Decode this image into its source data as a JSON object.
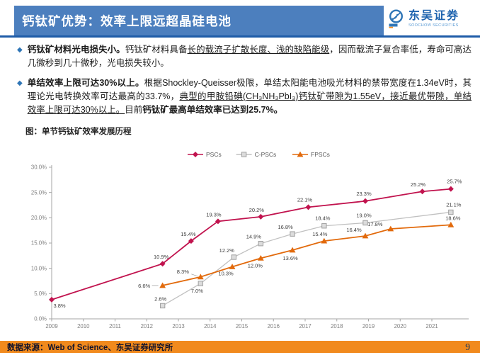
{
  "header": {
    "title": "钙钛矿优势：效率上限远超晶硅电池",
    "logo": {
      "name": "东吴证券",
      "sub": "SOOCHOW SECURITIES"
    }
  },
  "icons": {
    "bullet": "◆"
  },
  "bullets": [
    {
      "segments": [
        {
          "text": "钙钛矿材料光电损失小。",
          "bold": true
        },
        {
          "text": "钙钛矿材料具备"
        },
        {
          "text": "长的载流子扩散长度、浅的缺陷能级",
          "underline": true
        },
        {
          "text": "，因而载流子复合率低，寿命可高达几微秒到几十微秒，光电损失较小。"
        }
      ]
    },
    {
      "segments": [
        {
          "text": "单结效率上限可达30%以上。",
          "bold": true
        },
        {
          "text": "根据Shockley-Queisser极限，单结太阳能电池吸光材料的禁带宽度在1.34eV时，其理论光电转换效率可达最高的33.7%，"
        },
        {
          "text": "典型的甲胺铅碘(CH₃NH₃PbI₃)钙钛矿带隙为1.55eV，接近最优带隙，单结效率上限可达30%以上。",
          "underline": true
        },
        {
          "text": "目前"
        },
        {
          "text": "钙钛矿最高单结效率已达到25.7%。",
          "bold": true
        }
      ]
    }
  ],
  "figure_title": "图：单节钙钛矿效率发展历程",
  "chart_data": {
    "type": "line",
    "title": "单节钙钛矿效率发展历程",
    "xlabel": "",
    "ylabel": "",
    "grid": false,
    "legend_position": "top-center",
    "ylim": [
      0,
      30
    ],
    "y_ticks": [
      {
        "value": 0,
        "label": "0.0%"
      },
      {
        "value": 5,
        "label": "5.0%"
      },
      {
        "value": 10,
        "label": "10.0%"
      },
      {
        "value": 15,
        "label": "15.0%"
      },
      {
        "value": 20,
        "label": "20.0%"
      },
      {
        "value": 25,
        "label": "25.0%"
      },
      {
        "value": 30,
        "label": "30.0%"
      }
    ],
    "x_ticks": [
      2009,
      2010,
      2011,
      2012,
      2013,
      2014,
      2015,
      2016,
      2017,
      2018,
      2019,
      2020,
      2021
    ],
    "series": [
      {
        "name": "PSCs",
        "color": "#c1134e",
        "marker": "diamond",
        "line_width": 1.8,
        "points": [
          {
            "x": 2009.0,
            "y": 3.8,
            "label": "3.8%",
            "dx": 11,
            "dy": 11
          },
          {
            "x": 2012.5,
            "y": 10.9,
            "label": "10.9%",
            "dx": -2,
            "dy": -7
          },
          {
            "x": 2013.4,
            "y": 15.4,
            "label": "15.4%",
            "dx": -4,
            "dy": -7
          },
          {
            "x": 2014.25,
            "y": 19.3,
            "label": "19.3%",
            "dx": -6,
            "dy": -7
          },
          {
            "x": 2015.6,
            "y": 20.2,
            "label": "20.2%",
            "dx": -6,
            "dy": -7
          },
          {
            "x": 2017.1,
            "y": 22.1,
            "label": "22.1%",
            "dx": -5,
            "dy": -8
          },
          {
            "x": 2018.9,
            "y": 23.3,
            "label": "23.3%",
            "dx": -2,
            "dy": -8
          },
          {
            "x": 2020.7,
            "y": 25.2,
            "label": "25.2%",
            "dx": -6,
            "dy": -7
          },
          {
            "x": 2021.6,
            "y": 25.7,
            "label": "25.7%",
            "dx": 5,
            "dy": -8
          }
        ]
      },
      {
        "name": "C-PSCs",
        "color": "#c0c0c0",
        "marker": "square",
        "line_width": 1.3,
        "points": [
          {
            "x": 2012.5,
            "y": 2.6,
            "label": "2.6%",
            "dx": -3,
            "dy": -7
          },
          {
            "x": 2013.7,
            "y": 7.0,
            "label": "7.0%",
            "dx": -5,
            "dy": 13
          },
          {
            "x": 2014.75,
            "y": 12.2,
            "label": "12.2%",
            "dx": -10,
            "dy": -7
          },
          {
            "x": 2015.6,
            "y": 14.9,
            "label": "14.9%",
            "dx": -10,
            "dy": -7
          },
          {
            "x": 2016.6,
            "y": 16.8,
            "label": "16.8%",
            "dx": -10,
            "dy": -7
          },
          {
            "x": 2017.6,
            "y": 18.4,
            "label": "18.4%",
            "dx": -2,
            "dy": -8
          },
          {
            "x": 2018.9,
            "y": 19.0,
            "label": "19.0%",
            "dx": -2,
            "dy": -8
          },
          {
            "x": 2021.6,
            "y": 21.1,
            "label": "21.1%",
            "dx": 4,
            "dy": -8
          }
        ]
      },
      {
        "name": "FPSCs",
        "color": "#e26a0c",
        "marker": "triangle",
        "line_width": 1.8,
        "points": [
          {
            "x": 2012.5,
            "y": 6.6,
            "label": "6.6%",
            "dx": -26,
            "dy": 3,
            "leader": [
              -15,
              0,
              -6,
              0
            ]
          },
          {
            "x": 2013.7,
            "y": 8.3,
            "label": "8.3%",
            "dx": -25,
            "dy": -5,
            "leader": [
              -13,
              -4,
              -4,
              -1
            ]
          },
          {
            "x": 2014.7,
            "y": 10.3,
            "label": "10.3%",
            "dx": -9,
            "dy": 12
          },
          {
            "x": 2015.6,
            "y": 12.0,
            "label": "12.0%",
            "dx": -8,
            "dy": 13
          },
          {
            "x": 2016.6,
            "y": 13.6,
            "label": "13.6%",
            "dx": -3,
            "dy": 14
          },
          {
            "x": 2017.6,
            "y": 15.4,
            "label": "15.4%",
            "dx": -6,
            "dy": -7
          },
          {
            "x": 2018.9,
            "y": 16.4,
            "label": "16.4%",
            "dx": -16,
            "dy": -6
          },
          {
            "x": 2019.7,
            "y": 17.8,
            "label": "17.8%",
            "dx": -22,
            "dy": -4
          },
          {
            "x": 2021.6,
            "y": 18.6,
            "label": "18.6%",
            "dx": 3,
            "dy": -7
          }
        ]
      }
    ]
  },
  "footer": {
    "source": "数据来源：Web of Science、东吴证券研究所",
    "page": "9"
  },
  "colors": {
    "banner_blue": "#4c7fbe",
    "rule_blue": "#1e5ca8",
    "bullet_blue": "#2e75b6",
    "footer_orange": "#f18a1d",
    "axis_gray": "#a6a6a6",
    "tick_text": "#7f7f7f",
    "label_text": "#3d3d3d",
    "legend_text": "#595959"
  }
}
